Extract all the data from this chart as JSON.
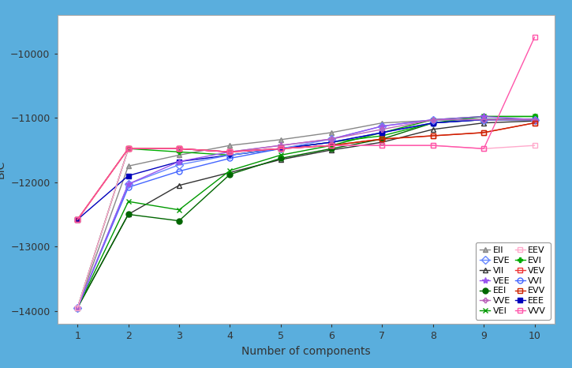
{
  "x": [
    1,
    2,
    3,
    4,
    5,
    6,
    7,
    8,
    9,
    10
  ],
  "series": [
    {
      "name": "EII",
      "color": "#888888",
      "marker": "^",
      "markerfacecolor": "#aaaaaa",
      "markeredgecolor": "#888888",
      "markersize": 5,
      "linewidth": 1.0,
      "values": [
        -13950,
        -11750,
        -11580,
        -11430,
        -11340,
        -11230,
        -11080,
        -11040,
        -11020,
        -11020
      ]
    },
    {
      "name": "VII",
      "color": "#333333",
      "marker": "^",
      "markerfacecolor": "none",
      "markeredgecolor": "#333333",
      "markersize": 5,
      "linewidth": 1.0,
      "values": [
        -13950,
        -12500,
        -12050,
        -11850,
        -11650,
        -11500,
        -11380,
        -11180,
        -11080,
        -11050
      ]
    },
    {
      "name": "EEI",
      "color": "#006600",
      "marker": "o",
      "markerfacecolor": "#006600",
      "markeredgecolor": "#006600",
      "markersize": 5,
      "linewidth": 1.0,
      "values": [
        -13950,
        -12500,
        -12600,
        -11880,
        -11630,
        -11480,
        -11330,
        -11080,
        -11030,
        -11030
      ]
    },
    {
      "name": "VEI",
      "color": "#009900",
      "marker": "x",
      "markerfacecolor": "#009900",
      "markeredgecolor": "#009900",
      "markersize": 5,
      "linewidth": 1.0,
      "values": [
        -13950,
        -12300,
        -12430,
        -11820,
        -11580,
        -11430,
        -11230,
        -11030,
        -10980,
        -10980
      ]
    },
    {
      "name": "EVI",
      "color": "#00aa00",
      "marker": "P",
      "markerfacecolor": "#00aa00",
      "markeredgecolor": "#00aa00",
      "markersize": 5,
      "linewidth": 1.0,
      "values": [
        -13950,
        -11480,
        -11530,
        -11580,
        -11480,
        -11380,
        -11280,
        -11080,
        -10980,
        -10980
      ]
    },
    {
      "name": "VVI",
      "color": "#4466ff",
      "marker": "o",
      "markerfacecolor": "none",
      "markeredgecolor": "#4466ff",
      "markersize": 5,
      "linewidth": 1.0,
      "values": [
        -13950,
        -12080,
        -11830,
        -11630,
        -11480,
        -11380,
        -11230,
        -11080,
        -11030,
        -11030
      ]
    },
    {
      "name": "EEE",
      "color": "#0000bb",
      "marker": "s",
      "markerfacecolor": "#0000bb",
      "markeredgecolor": "#0000bb",
      "markersize": 5,
      "linewidth": 1.0,
      "values": [
        -12580,
        -11900,
        -11680,
        -11580,
        -11480,
        -11380,
        -11230,
        -11080,
        -11030,
        -11030
      ]
    },
    {
      "name": "EVE",
      "color": "#6688ff",
      "marker": "D",
      "markerfacecolor": "none",
      "markeredgecolor": "#6688ff",
      "markersize": 5,
      "linewidth": 1.0,
      "values": [
        -13950,
        -12030,
        -11730,
        -11580,
        -11480,
        -11330,
        -11130,
        -11030,
        -11030,
        -11030
      ]
    },
    {
      "name": "VEE",
      "color": "#9955ee",
      "marker": "*",
      "markerfacecolor": "#9955ee",
      "markeredgecolor": "#9955ee",
      "markersize": 6,
      "linewidth": 1.0,
      "values": [
        -13950,
        -12030,
        -11680,
        -11530,
        -11430,
        -11330,
        -11130,
        -11030,
        -10980,
        -11030
      ]
    },
    {
      "name": "VVE",
      "color": "#bb66bb",
      "marker": "P",
      "markerfacecolor": "none",
      "markeredgecolor": "#bb66bb",
      "markersize": 5,
      "linewidth": 1.0,
      "values": [
        -13950,
        -11480,
        -11480,
        -11530,
        -11430,
        -11330,
        -11180,
        -11030,
        -11030,
        -11030
      ]
    },
    {
      "name": "EEV",
      "color": "#ffaacc",
      "marker": "s",
      "markerfacecolor": "none",
      "markeredgecolor": "#ffaacc",
      "markersize": 5,
      "linewidth": 1.0,
      "values": [
        -13950,
        -11480,
        -11480,
        -11530,
        -11480,
        -11430,
        -11430,
        -11430,
        -11480,
        -11430
      ]
    },
    {
      "name": "VEV",
      "color": "#ee3333",
      "marker": "s",
      "markerfacecolor": "none",
      "markeredgecolor": "#ee3333",
      "markersize": 5,
      "linewidth": 1.0,
      "values": [
        -12580,
        -11480,
        -11480,
        -11530,
        -11480,
        -11430,
        -11330,
        -11280,
        -11230,
        -11080
      ]
    },
    {
      "name": "EVV",
      "color": "#cc2200",
      "marker": "s",
      "markerfacecolor": "none",
      "markeredgecolor": "#cc2200",
      "markersize": 5,
      "linewidth": 1.0,
      "values": [
        -12580,
        -11480,
        -11480,
        -11530,
        -11480,
        -11430,
        -11330,
        -11280,
        -11230,
        -11080
      ]
    },
    {
      "name": "VVV",
      "color": "#ff55aa",
      "marker": "s",
      "markerfacecolor": "none",
      "markeredgecolor": "#ff55aa",
      "markersize": 5,
      "linewidth": 1.0,
      "values": [
        -12580,
        -11480,
        -11480,
        -11530,
        -11480,
        -11430,
        -11430,
        -11430,
        -11480,
        -9750
      ]
    }
  ],
  "xlabel": "Number of components",
  "ylabel": "BIC",
  "xlim": [
    0.6,
    10.4
  ],
  "ylim": [
    -14200,
    -9400
  ],
  "yticks": [
    -14000,
    -13000,
    -12000,
    -11000,
    -10000
  ],
  "xticks": [
    1,
    2,
    3,
    4,
    5,
    6,
    7,
    8,
    9,
    10
  ],
  "legend_order_left": [
    "EII",
    "VII",
    "EEI",
    "VEI",
    "EVI",
    "VVI",
    "EEE"
  ],
  "legend_order_right": [
    "EVE",
    "VEE",
    "VVE",
    "EEV",
    "VEV",
    "EVV",
    "VVV"
  ],
  "background_color": "#ffffff",
  "border_color": "#5aaedd",
  "border_width": 6
}
